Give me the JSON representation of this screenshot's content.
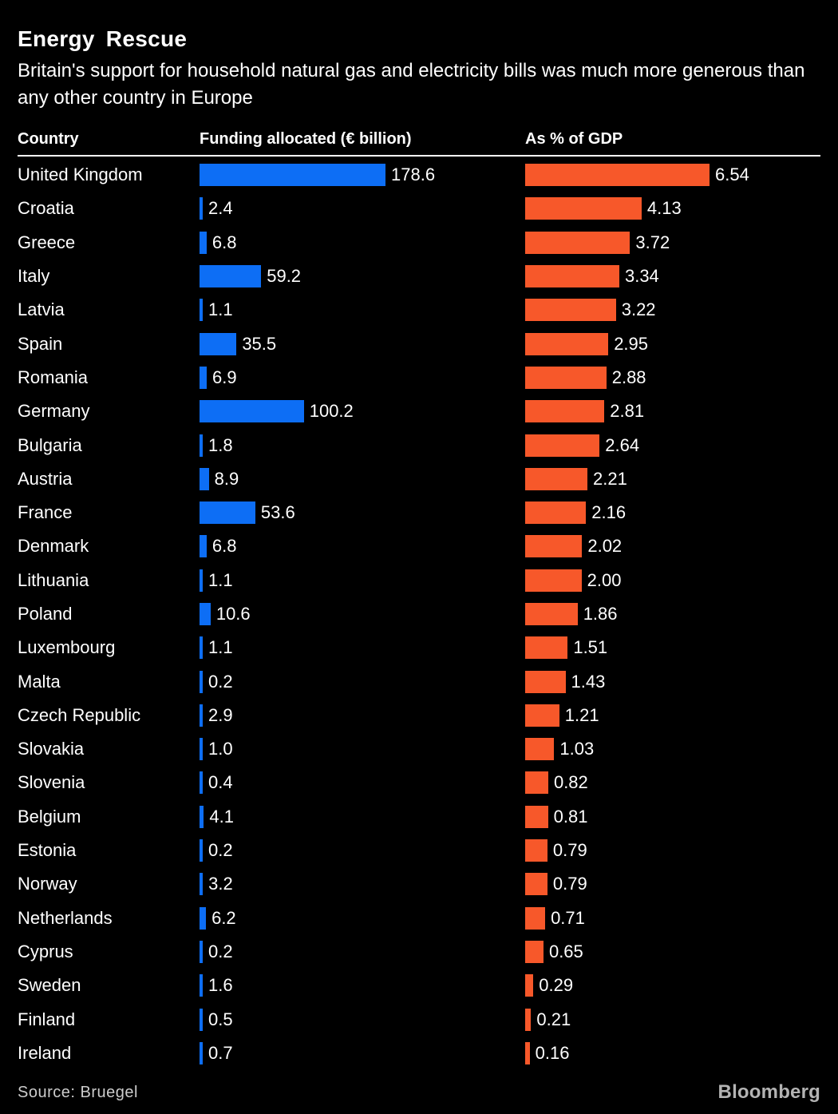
{
  "header": {
    "title": "Energy Rescue",
    "subtitle": "Britain's support for household natural gas and electricity bills was much more generous than any other country in Europe"
  },
  "columns": {
    "country": "Country",
    "funding": "Funding allocated (€ billion)",
    "gdp": "As % of GDP"
  },
  "chart_data": {
    "type": "bar",
    "orientation": "horizontal",
    "title": "Energy Rescue",
    "subtitle": "Britain's support for household natural gas and electricity bills was much more generous than any other country in Europe",
    "categories": [
      "United Kingdom",
      "Croatia",
      "Greece",
      "Italy",
      "Latvia",
      "Spain",
      "Romania",
      "Germany",
      "Bulgaria",
      "Austria",
      "France",
      "Denmark",
      "Lithuania",
      "Poland",
      "Luxembourg",
      "Malta",
      "Czech Republic",
      "Slovakia",
      "Slovenia",
      "Belgium",
      "Estonia",
      "Norway",
      "Netherlands",
      "Cyprus",
      "Sweden",
      "Finland",
      "Ireland"
    ],
    "series": [
      {
        "name": "Funding allocated (€ billion)",
        "color": "#0d6ef5",
        "xlim": [
          0,
          178.6
        ],
        "value_decimals": 1,
        "values": [
          178.6,
          2.4,
          6.8,
          59.2,
          1.1,
          35.5,
          6.9,
          100.2,
          1.8,
          8.9,
          53.6,
          6.8,
          1.1,
          10.6,
          1.1,
          0.2,
          2.9,
          1.0,
          0.4,
          4.1,
          0.2,
          3.2,
          6.2,
          0.2,
          1.6,
          0.5,
          0.7
        ]
      },
      {
        "name": "As % of GDP",
        "color": "#f7582a",
        "xlim": [
          0,
          6.54
        ],
        "value_decimals": 2,
        "values": [
          6.54,
          4.13,
          3.72,
          3.34,
          3.22,
          2.95,
          2.88,
          2.81,
          2.64,
          2.21,
          2.16,
          2.02,
          2.0,
          1.86,
          1.51,
          1.43,
          1.21,
          1.03,
          0.82,
          0.81,
          0.79,
          0.79,
          0.71,
          0.65,
          0.29,
          0.21,
          0.16
        ]
      }
    ],
    "grid": false,
    "legend": false,
    "value_labels": "end-of-bar"
  },
  "footer": {
    "source": "Source: Bruegel",
    "brand": "Bloomberg"
  },
  "colors": {
    "background": "#000000",
    "text": "#ffffff",
    "funding_bar": "#0d6ef5",
    "gdp_bar": "#f7582a",
    "source_text": "#cccccc",
    "brand_text": "#b3b3b3"
  }
}
